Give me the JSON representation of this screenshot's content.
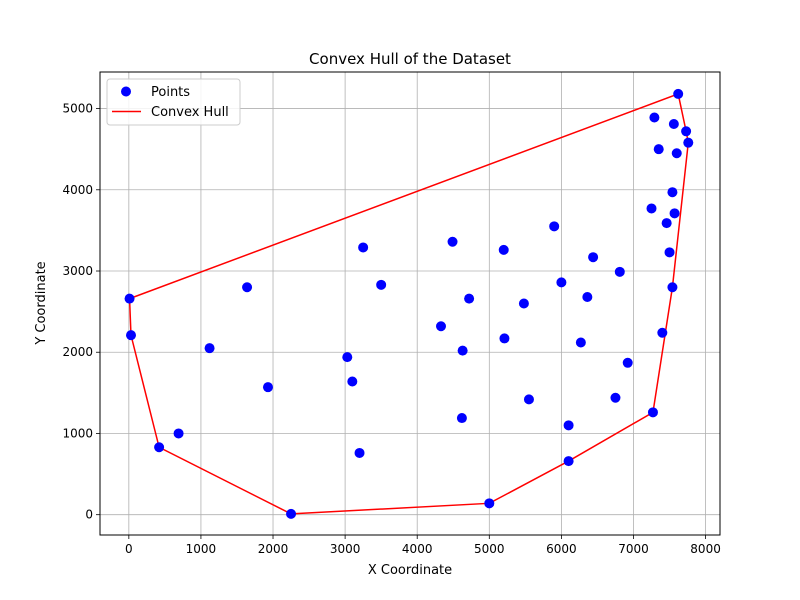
{
  "chart_data": {
    "type": "scatter",
    "title": "Convex Hull of the Dataset",
    "xlabel": "X Coordinate",
    "ylabel": "Y Coordinate",
    "xlim": [
      -400,
      8200
    ],
    "ylim": [
      -250,
      5450
    ],
    "xticks": [
      0,
      1000,
      2000,
      3000,
      4000,
      5000,
      6000,
      7000,
      8000
    ],
    "yticks": [
      0,
      1000,
      2000,
      3000,
      4000,
      5000
    ],
    "grid": true,
    "legend": {
      "position": "top-left",
      "entries": [
        "Points",
        "Convex Hull"
      ]
    },
    "colors": {
      "points": "#0000ff",
      "hull": "#ff0000"
    },
    "series": [
      {
        "name": "Points",
        "kind": "scatter",
        "points": [
          [
            7620,
            5180
          ],
          [
            7290,
            4890
          ],
          [
            7560,
            4810
          ],
          [
            7730,
            4720
          ],
          [
            7760,
            4580
          ],
          [
            7350,
            4500
          ],
          [
            7600,
            4450
          ],
          [
            7540,
            3970
          ],
          [
            7250,
            3770
          ],
          [
            7570,
            3710
          ],
          [
            7460,
            3590
          ],
          [
            7500,
            3230
          ],
          [
            7540,
            2800
          ],
          [
            7400,
            2240
          ],
          [
            7270,
            1260
          ],
          [
            6810,
            2990
          ],
          [
            6440,
            3170
          ],
          [
            6920,
            1870
          ],
          [
            6750,
            1440
          ],
          [
            6360,
            2680
          ],
          [
            6000,
            2860
          ],
          [
            5900,
            3550
          ],
          [
            6270,
            2120
          ],
          [
            6100,
            1100
          ],
          [
            6100,
            660
          ],
          [
            5200,
            3260
          ],
          [
            5480,
            2600
          ],
          [
            5210,
            2170
          ],
          [
            5550,
            1420
          ],
          [
            5000,
            140
          ],
          [
            4490,
            3360
          ],
          [
            4720,
            2660
          ],
          [
            4330,
            2320
          ],
          [
            4630,
            2020
          ],
          [
            4620,
            1190
          ],
          [
            3250,
            3290
          ],
          [
            3500,
            2830
          ],
          [
            3030,
            1940
          ],
          [
            3100,
            1640
          ],
          [
            3200,
            760
          ],
          [
            1640,
            2800
          ],
          [
            1120,
            2050
          ],
          [
            1930,
            1570
          ],
          [
            690,
            1000
          ],
          [
            420,
            830
          ],
          [
            2250,
            10
          ],
          [
            10,
            2660
          ],
          [
            30,
            2210
          ]
        ]
      },
      {
        "name": "Convex Hull",
        "kind": "line",
        "points": [
          [
            10,
            2660
          ],
          [
            30,
            2210
          ],
          [
            420,
            830
          ],
          [
            2250,
            10
          ],
          [
            5000,
            140
          ],
          [
            6100,
            660
          ],
          [
            7270,
            1260
          ],
          [
            7540,
            2800
          ],
          [
            7760,
            4580
          ],
          [
            7730,
            4720
          ],
          [
            7620,
            5180
          ],
          [
            10,
            2660
          ]
        ]
      }
    ]
  }
}
